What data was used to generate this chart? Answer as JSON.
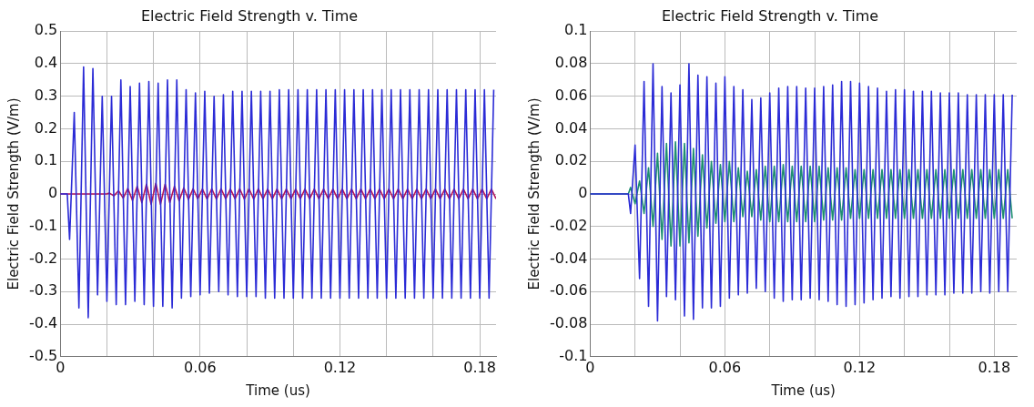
{
  "chart_data": [
    {
      "type": "line",
      "title": "Electric Field Strength v. Time",
      "xlabel": "Time (us)",
      "ylabel": "Electric Field Strength (V/m)",
      "xlim": [
        0,
        0.187
      ],
      "ylim": [
        -0.5,
        0.5
      ],
      "xticks": [
        0,
        {
          "value": 0.02,
          "label": null
        },
        {
          "value": 0.04,
          "label": null
        },
        0.06,
        {
          "value": 0.08,
          "label": null
        },
        {
          "value": 0.1,
          "label": null
        },
        0.12,
        {
          "value": 0.14,
          "label": null
        },
        {
          "value": 0.16,
          "label": null
        },
        0.18
      ],
      "yticks": [
        -0.5,
        -0.4,
        -0.3,
        -0.2,
        -0.1,
        0,
        0.1,
        0.2,
        0.3,
        0.4,
        0.5
      ],
      "grid": true,
      "marker": "none",
      "series": [
        {
          "color": "#2b2bd6",
          "x": [
            0,
            0.003,
            0.004,
            0.006,
            0.008,
            0.01,
            0.012,
            0.014,
            0.016,
            0.018,
            0.02,
            0.022,
            0.024,
            0.026,
            0.028,
            0.03,
            0.032,
            0.034,
            0.036,
            0.038,
            0.04,
            0.042,
            0.044,
            0.046,
            0.048,
            0.05,
            0.052,
            0.054,
            0.056,
            0.058,
            0.06,
            0.062,
            0.064,
            0.066,
            0.068,
            0.07,
            0.072,
            0.074,
            0.076,
            0.078,
            0.08,
            0.082,
            0.084,
            0.086,
            0.088,
            0.09,
            0.092,
            0.094,
            0.096,
            0.098,
            0.1,
            0.102,
            0.104,
            0.106,
            0.108,
            0.11,
            0.112,
            0.114,
            0.116,
            0.118,
            0.12,
            0.122,
            0.124,
            0.126,
            0.128,
            0.13,
            0.132,
            0.134,
            0.136,
            0.138,
            0.14,
            0.142,
            0.144,
            0.146,
            0.148,
            0.15,
            0.152,
            0.154,
            0.156,
            0.158,
            0.16,
            0.162,
            0.164,
            0.166,
            0.168,
            0.17,
            0.172,
            0.174,
            0.176,
            0.178,
            0.18,
            0.182,
            0.184,
            0.186
          ],
          "values": [
            0,
            0,
            -0.14,
            0.25,
            -0.35,
            0.39,
            -0.38,
            0.385,
            -0.31,
            0.3,
            -0.33,
            0.3,
            -0.34,
            0.35,
            -0.34,
            0.33,
            -0.33,
            0.34,
            -0.34,
            0.345,
            -0.345,
            0.34,
            -0.345,
            0.35,
            -0.35,
            0.35,
            -0.32,
            0.32,
            -0.315,
            0.31,
            -0.31,
            0.315,
            -0.305,
            0.3,
            -0.3,
            0.305,
            -0.31,
            0.315,
            -0.315,
            0.315,
            -0.315,
            0.315,
            -0.315,
            0.315,
            -0.32,
            0.315,
            -0.32,
            0.32,
            -0.32,
            0.32,
            -0.32,
            0.32,
            -0.32,
            0.32,
            -0.32,
            0.32,
            -0.32,
            0.32,
            -0.32,
            0.32,
            -0.32,
            0.32,
            -0.32,
            0.32,
            -0.32,
            0.32,
            -0.32,
            0.32,
            -0.32,
            0.32,
            -0.32,
            0.32,
            -0.32,
            0.32,
            -0.32,
            0.32,
            -0.32,
            0.32,
            -0.32,
            0.32,
            -0.32,
            0.32,
            -0.32,
            0.32,
            -0.32,
            0.32,
            -0.32,
            0.32,
            -0.32,
            0.32,
            -0.32,
            0.32,
            -0.32,
            0.32
          ]
        },
        {
          "color": "#b3145c",
          "x": [
            0,
            0.02,
            0.021,
            0.023,
            0.025,
            0.027,
            0.029,
            0.031,
            0.033,
            0.035,
            0.037,
            0.039,
            0.041,
            0.043,
            0.045,
            0.047,
            0.049,
            0.051,
            0.053,
            0.055,
            0.057,
            0.059,
            0.061,
            0.063,
            0.065,
            0.067,
            0.069,
            0.071,
            0.073,
            0.075,
            0.077,
            0.079,
            0.081,
            0.083,
            0.085,
            0.087,
            0.089,
            0.091,
            0.093,
            0.095,
            0.097,
            0.099,
            0.101,
            0.103,
            0.105,
            0.107,
            0.109,
            0.111,
            0.113,
            0.115,
            0.117,
            0.119,
            0.121,
            0.123,
            0.125,
            0.127,
            0.129,
            0.131,
            0.133,
            0.135,
            0.137,
            0.139,
            0.141,
            0.143,
            0.145,
            0.147,
            0.149,
            0.151,
            0.153,
            0.155,
            0.157,
            0.159,
            0.161,
            0.163,
            0.165,
            0.167,
            0.169,
            0.171,
            0.173,
            0.175,
            0.177,
            0.179,
            0.181,
            0.183,
            0.185,
            0.187
          ],
          "values": [
            0,
            0,
            0.003,
            -0.006,
            0.01,
            -0.013,
            0.017,
            -0.02,
            0.024,
            -0.027,
            0.03,
            -0.032,
            0.033,
            -0.032,
            0.03,
            -0.027,
            0.024,
            -0.021,
            0.019,
            -0.017,
            0.016,
            -0.015,
            0.015,
            -0.016,
            0.016,
            -0.016,
            0.016,
            -0.015,
            0.015,
            -0.015,
            0.016,
            -0.016,
            0.016,
            -0.016,
            0.016,
            -0.015,
            0.015,
            -0.015,
            0.015,
            -0.015,
            0.015,
            -0.015,
            0.015,
            -0.015,
            0.015,
            -0.015,
            0.015,
            -0.015,
            0.015,
            -0.015,
            0.015,
            -0.015,
            0.015,
            -0.015,
            0.015,
            -0.015,
            0.015,
            -0.015,
            0.015,
            -0.015,
            0.015,
            -0.015,
            0.015,
            -0.015,
            0.015,
            -0.015,
            0.015,
            -0.015,
            0.015,
            -0.015,
            0.015,
            -0.015,
            0.015,
            -0.015,
            0.015,
            -0.015,
            0.015,
            -0.015,
            0.015,
            -0.015,
            0.015,
            -0.015,
            0.015,
            -0.015,
            0.015,
            -0.015
          ]
        }
      ]
    },
    {
      "type": "line",
      "title": "Electric Field Strength v. Time",
      "xlabel": "Time (us)",
      "ylabel": "Electric Field Strength (V/m)",
      "xlim": [
        0,
        0.19
      ],
      "ylim": [
        -0.1,
        0.1
      ],
      "xticks": [
        0,
        {
          "value": 0.02,
          "label": null
        },
        {
          "value": 0.04,
          "label": null
        },
        0.06,
        {
          "value": 0.08,
          "label": null
        },
        {
          "value": 0.1,
          "label": null
        },
        0.12,
        {
          "value": 0.14,
          "label": null
        },
        {
          "value": 0.16,
          "label": null
        },
        0.18
      ],
      "yticks": [
        -0.1,
        -0.08,
        -0.06,
        -0.04,
        -0.02,
        0,
        0.02,
        0.04,
        0.06,
        0.08,
        0.1
      ],
      "grid": true,
      "marker": "none",
      "x": [
        0,
        0.017,
        0.018,
        0.02,
        0.022,
        0.024,
        0.026,
        0.028,
        0.03,
        0.032,
        0.034,
        0.036,
        0.038,
        0.04,
        0.042,
        0.044,
        0.046,
        0.048,
        0.05,
        0.052,
        0.054,
        0.056,
        0.058,
        0.06,
        0.062,
        0.064,
        0.066,
        0.068,
        0.07,
        0.072,
        0.074,
        0.076,
        0.078,
        0.08,
        0.082,
        0.084,
        0.086,
        0.088,
        0.09,
        0.092,
        0.094,
        0.096,
        0.098,
        0.1,
        0.102,
        0.104,
        0.106,
        0.108,
        0.11,
        0.112,
        0.114,
        0.116,
        0.118,
        0.12,
        0.122,
        0.124,
        0.126,
        0.128,
        0.13,
        0.132,
        0.134,
        0.136,
        0.138,
        0.14,
        0.142,
        0.144,
        0.146,
        0.148,
        0.15,
        0.152,
        0.154,
        0.156,
        0.158,
        0.16,
        0.162,
        0.164,
        0.166,
        0.168,
        0.17,
        0.172,
        0.174,
        0.176,
        0.178,
        0.18,
        0.182,
        0.184,
        0.186,
        0.188
      ],
      "series": [
        {
          "color": "#2b2bd6",
          "values": [
            0,
            0,
            -0.012,
            0.03,
            -0.052,
            0.069,
            -0.069,
            0.08,
            -0.078,
            0.066,
            -0.063,
            0.062,
            -0.065,
            0.067,
            -0.075,
            0.08,
            -0.077,
            0.073,
            -0.07,
            0.072,
            -0.07,
            0.068,
            -0.069,
            0.072,
            -0.064,
            0.066,
            -0.062,
            0.064,
            -0.061,
            0.058,
            -0.058,
            0.059,
            -0.06,
            0.062,
            -0.064,
            0.065,
            -0.066,
            0.066,
            -0.065,
            0.066,
            -0.065,
            0.065,
            -0.064,
            0.065,
            -0.065,
            0.066,
            -0.066,
            0.067,
            -0.068,
            0.069,
            -0.069,
            0.069,
            -0.068,
            0.068,
            -0.067,
            0.066,
            -0.065,
            0.065,
            -0.064,
            0.063,
            -0.063,
            0.064,
            -0.064,
            0.064,
            -0.063,
            0.063,
            -0.063,
            0.063,
            -0.062,
            0.063,
            -0.062,
            0.062,
            -0.062,
            0.062,
            -0.061,
            0.062,
            -0.061,
            0.061,
            -0.061,
            0.061,
            -0.06,
            0.061,
            -0.061,
            0.061,
            -0.06,
            0.061,
            -0.06,
            0.061
          ]
        },
        {
          "color": "#1f8f70",
          "values": [
            0,
            0,
            0.004,
            -0.006,
            0.008,
            -0.012,
            0.016,
            -0.02,
            0.025,
            -0.028,
            0.031,
            -0.032,
            0.032,
            -0.032,
            0.031,
            -0.03,
            0.028,
            -0.026,
            0.024,
            -0.021,
            0.02,
            -0.018,
            0.018,
            -0.017,
            0.02,
            -0.017,
            0.016,
            -0.014,
            0.014,
            -0.014,
            0.015,
            -0.016,
            0.017,
            -0.017,
            0.017,
            -0.017,
            0.018,
            -0.017,
            0.017,
            -0.017,
            0.017,
            -0.017,
            0.017,
            -0.017,
            0.017,
            -0.016,
            0.016,
            -0.016,
            0.016,
            -0.016,
            0.016,
            -0.015,
            0.015,
            -0.015,
            0.015,
            -0.015,
            0.015,
            -0.015,
            0.015,
            -0.015,
            0.015,
            -0.015,
            0.015,
            -0.015,
            0.015,
            -0.015,
            0.015,
            -0.015,
            0.015,
            -0.015,
            0.015,
            -0.015,
            0.015,
            -0.015,
            0.015,
            -0.015,
            0.015,
            -0.015,
            0.015,
            -0.015,
            0.015,
            -0.015,
            0.015,
            -0.015,
            0.015,
            -0.015,
            0.015,
            -0.015
          ]
        }
      ]
    }
  ]
}
